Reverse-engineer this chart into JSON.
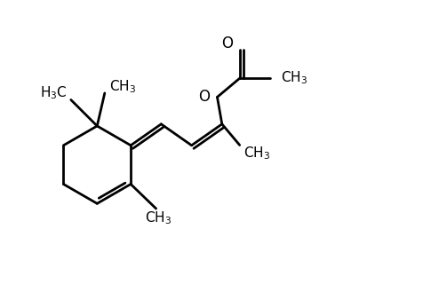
{
  "background_color": "#ffffff",
  "line_color": "#000000",
  "line_width": 2.0,
  "font_size": 11,
  "figsize": [
    4.94,
    3.38
  ],
  "dpi": 100
}
